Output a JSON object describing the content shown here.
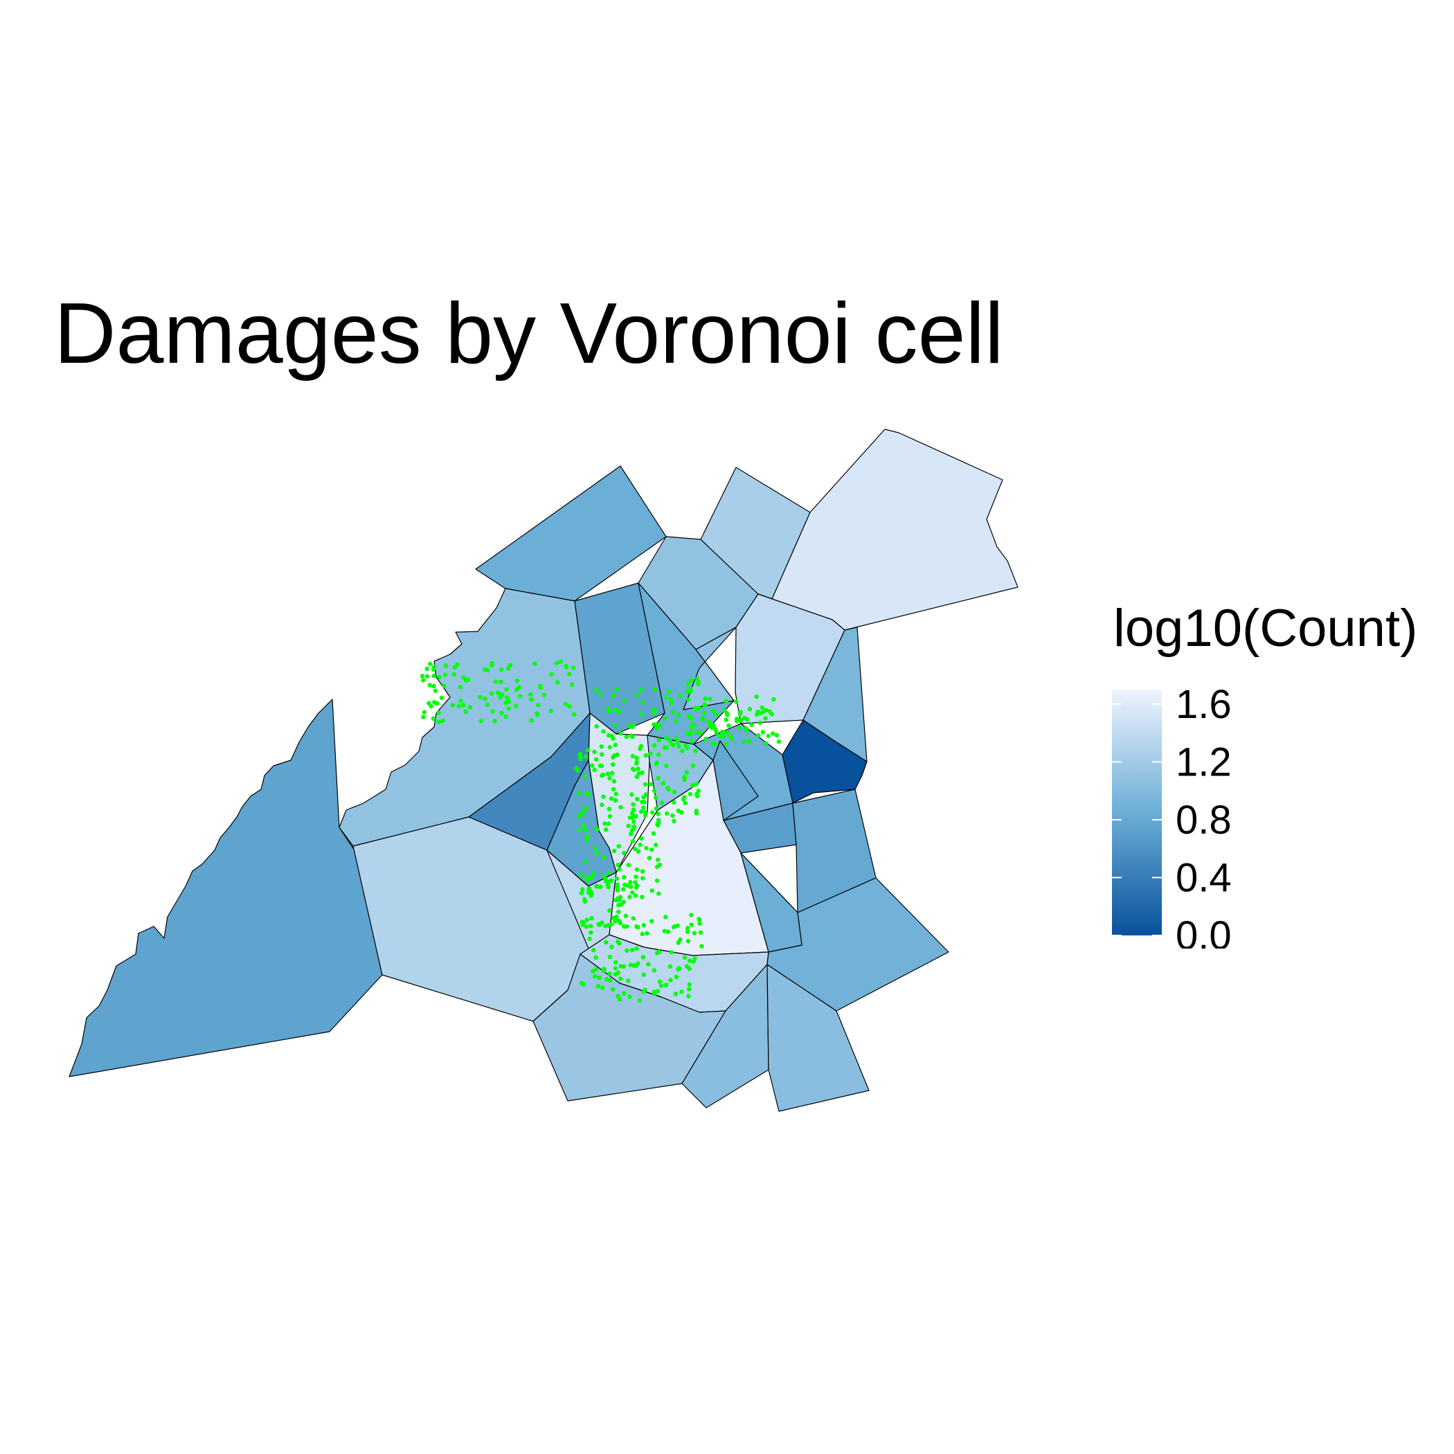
{
  "title": "Damages by Voronoi cell",
  "legend": {
    "title": "log10(Count)",
    "breaks": [
      "1.6",
      "1.2",
      "0.8",
      "0.4",
      "0.0"
    ],
    "break_values": [
      1.6,
      1.2,
      0.8,
      0.4,
      0.0
    ],
    "limits": [
      0.0,
      1.7
    ],
    "low_color": "#08519c",
    "mid_color": "#6baed6",
    "high_color": "#eff3ff"
  },
  "point_color": "#00ff00",
  "cell_stroke_color": "#000000",
  "chart_data": {
    "type": "heatmap",
    "title": "Damages by Voronoi cell",
    "fill_variable": "log10(Count)",
    "cells": [
      {
        "id": "southwest",
        "value": 0.75
      },
      {
        "id": "north-left",
        "value": 0.85
      },
      {
        "id": "north-mid",
        "value": 1.1
      },
      {
        "id": "north-top",
        "value": 1.25
      },
      {
        "id": "northeast",
        "value": 1.55
      },
      {
        "id": "west-upper",
        "value": 1.1
      },
      {
        "id": "c-upper-left",
        "value": 0.75
      },
      {
        "id": "c-upper-mid",
        "value": 0.85
      },
      {
        "id": "c-upper-right",
        "value": 1.1
      },
      {
        "id": "right-upper",
        "value": 1.4
      },
      {
        "id": "east-narrow",
        "value": 0.95
      },
      {
        "id": "east-dark",
        "value": 0.0
      },
      {
        "id": "center-dark",
        "value": 0.5
      },
      {
        "id": "center-light",
        "value": 1.55
      },
      {
        "id": "center-mid",
        "value": 1.1
      },
      {
        "id": "center-small",
        "value": 0.75
      },
      {
        "id": "center-right",
        "value": 0.85
      },
      {
        "id": "right-mid",
        "value": 0.8
      },
      {
        "id": "right-small",
        "value": 0.7
      },
      {
        "id": "east-mid",
        "value": 0.8
      },
      {
        "id": "west-large",
        "value": 1.3
      },
      {
        "id": "south-center",
        "value": 1.4
      },
      {
        "id": "south-lightest",
        "value": 1.65
      },
      {
        "id": "south-mid",
        "value": 1.1
      },
      {
        "id": "southeast-upper",
        "value": 0.9
      },
      {
        "id": "south-pale",
        "value": 1.35
      },
      {
        "id": "south-bottom",
        "value": 1.15
      },
      {
        "id": "south-bottom-mid",
        "value": 1.05
      },
      {
        "id": "south-bottom-right",
        "value": 1.05
      },
      {
        "id": "right-lower",
        "value": 0.9
      },
      {
        "id": "east-lower",
        "value": 0.85
      }
    ]
  }
}
